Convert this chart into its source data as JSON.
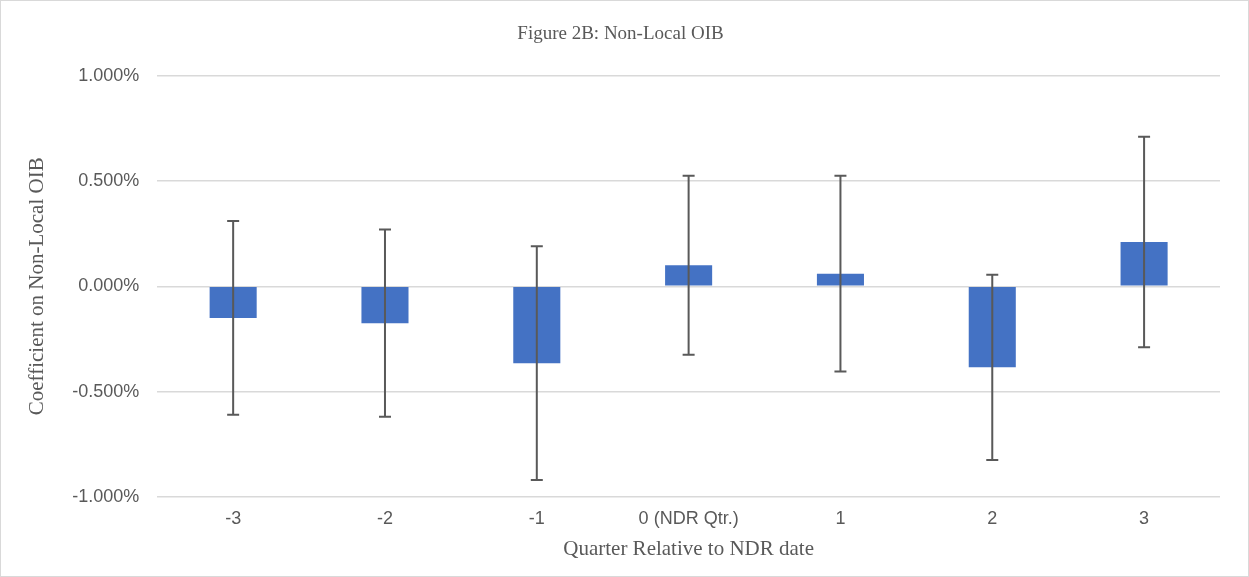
{
  "chart_data": {
    "type": "bar",
    "title": "Figure 2B: Non-Local OIB",
    "xlabel": "Quarter Relative to NDR date",
    "ylabel": "Coefficient on Non-Local OIB",
    "categories": [
      "-3",
      "-2",
      "-1",
      "0 (NDR Qtr.)",
      "1",
      "2",
      "3"
    ],
    "values": [
      -0.15,
      -0.175,
      -0.365,
      0.1,
      0.06,
      -0.385,
      0.21
    ],
    "errors": [
      0.46,
      0.445,
      0.555,
      0.425,
      0.465,
      0.44,
      0.5
    ],
    "color": "#4472c4",
    "ylim": [
      -1,
      1
    ],
    "yticks": [
      {
        "value": -1,
        "label": "-1.000%"
      },
      {
        "value": -0.5,
        "label": "-0.500%"
      },
      {
        "value": 0,
        "label": "0.000%"
      },
      {
        "value": 0.5,
        "label": "0.500%"
      },
      {
        "value": 1,
        "label": "1.000%"
      }
    ],
    "grid": "y"
  }
}
